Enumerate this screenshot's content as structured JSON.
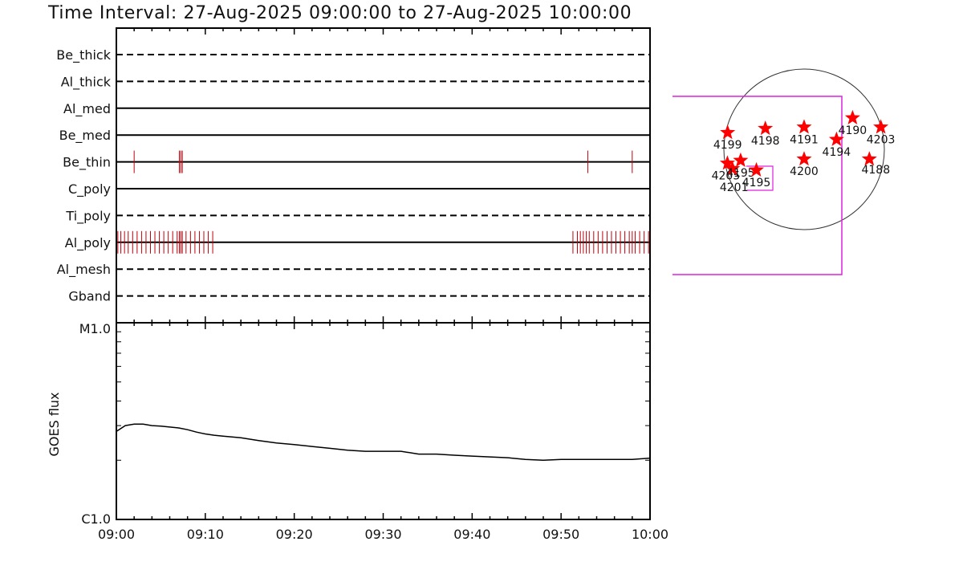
{
  "title": "Time Interval: 27-Aug-2025 09:00:00 to 27-Aug-2025 10:00:00",
  "colors": {
    "axis": "#000000",
    "events": "#c0000a",
    "stars": "#ff0000",
    "fov": "#dd22dd"
  },
  "icon": "star-icon",
  "chart_data": [
    {
      "type": "event-raster",
      "x_range": [
        "09:00",
        "10:00"
      ],
      "rows": [
        {
          "name": "Be_thick",
          "style": "dashed",
          "events": []
        },
        {
          "name": "Al_thick",
          "style": "dashed",
          "events": []
        },
        {
          "name": "Al_med",
          "style": "solid",
          "events": []
        },
        {
          "name": "Be_med",
          "style": "solid",
          "events": []
        },
        {
          "name": "Be_thin",
          "style": "solid",
          "events": [
            "09:02:00",
            "09:07:05",
            "09:07:15",
            "09:07:25",
            "09:53:00",
            "09:58:00"
          ]
        },
        {
          "name": "C_poly",
          "style": "solid",
          "events": []
        },
        {
          "name": "Ti_poly",
          "style": "dashed",
          "events": []
        },
        {
          "name": "Al_poly",
          "style": "solid",
          "events": [
            "09:00:10",
            "09:00:30",
            "09:00:55",
            "09:01:20",
            "09:01:50",
            "09:02:20",
            "09:02:50",
            "09:03:20",
            "09:03:50",
            "09:04:20",
            "09:04:50",
            "09:05:20",
            "09:05:50",
            "09:06:20",
            "09:06:50",
            "09:07:05",
            "09:07:15",
            "09:07:25",
            "09:07:50",
            "09:08:20",
            "09:08:50",
            "09:09:20",
            "09:09:50",
            "09:10:20",
            "09:10:50",
            "09:51:20",
            "09:51:50",
            "09:52:10",
            "09:52:30",
            "09:52:50",
            "09:53:10",
            "09:53:40",
            "09:54:10",
            "09:54:40",
            "09:55:10",
            "09:55:40",
            "09:56:10",
            "09:56:40",
            "09:57:10",
            "09:57:40",
            "09:58:00",
            "09:58:20",
            "09:58:50",
            "09:59:20",
            "09:59:50"
          ]
        },
        {
          "name": "Al_mesh",
          "style": "dashed",
          "events": []
        },
        {
          "name": "Gband",
          "style": "dashed",
          "events": []
        }
      ]
    },
    {
      "type": "line",
      "ylabel": "GOES flux",
      "ytick_labels": [
        "M1.0",
        "C1.0"
      ],
      "ylim": [
        "C1.0",
        "M1.0"
      ],
      "y_scale": "log",
      "xlim": [
        "09:00",
        "10:00"
      ],
      "xtick_labels": [
        "09:00",
        "09:10",
        "09:20",
        "09:30",
        "09:40",
        "09:50",
        "10:00"
      ],
      "x_minutes": [
        0,
        1,
        2,
        3,
        4,
        5,
        6,
        7,
        8,
        9,
        10,
        11,
        12,
        14,
        16,
        18,
        20,
        22,
        24,
        26,
        28,
        30,
        32,
        34,
        36,
        38,
        40,
        42,
        44,
        46,
        48,
        50,
        52,
        54,
        56,
        58,
        60
      ],
      "y_flux_class": [
        "C2.8",
        "C3.0",
        "C3.05",
        "C3.05",
        "C3.0",
        "C2.98",
        "C2.95",
        "C2.92",
        "C2.86",
        "C2.78",
        "C2.72",
        "C2.68",
        "C2.65",
        "C2.6",
        "C2.52",
        "C2.45",
        "C2.4",
        "C2.35",
        "C2.3",
        "C2.25",
        "C2.22",
        "C2.22",
        "C2.22",
        "C2.15",
        "C2.15",
        "C2.12",
        "C2.1",
        "C2.08",
        "C2.06",
        "C2.02",
        "C2.0",
        "C2.02",
        "C2.02",
        "C2.02",
        "C2.02",
        "C2.02",
        "C2.05"
      ]
    },
    {
      "type": "scatter",
      "active_regions": [
        {
          "label": "4199",
          "lon": -77,
          "lat": 12
        },
        {
          "label": "4198",
          "lon": -30,
          "lat": 15
        },
        {
          "label": "4191",
          "lon": 0,
          "lat": 16
        },
        {
          "label": "4190",
          "lon": 41,
          "lat": 23
        },
        {
          "label": "4203",
          "lon": 84,
          "lat": 16
        },
        {
          "label": "4194",
          "lon": 24,
          "lat": 7
        },
        {
          "label": "4200",
          "lon": 0,
          "lat": -7
        },
        {
          "label": "4188",
          "lon": 55,
          "lat": -7
        },
        {
          "label": "4205",
          "lon": -76,
          "lat": -10
        },
        {
          "label": "4201",
          "lon": -67,
          "lat": -14
        },
        {
          "label": "4195",
          "lon": -53,
          "lat": -8
        },
        {
          "label": "4195",
          "lon": -38,
          "lat": -15
        }
      ]
    }
  ]
}
